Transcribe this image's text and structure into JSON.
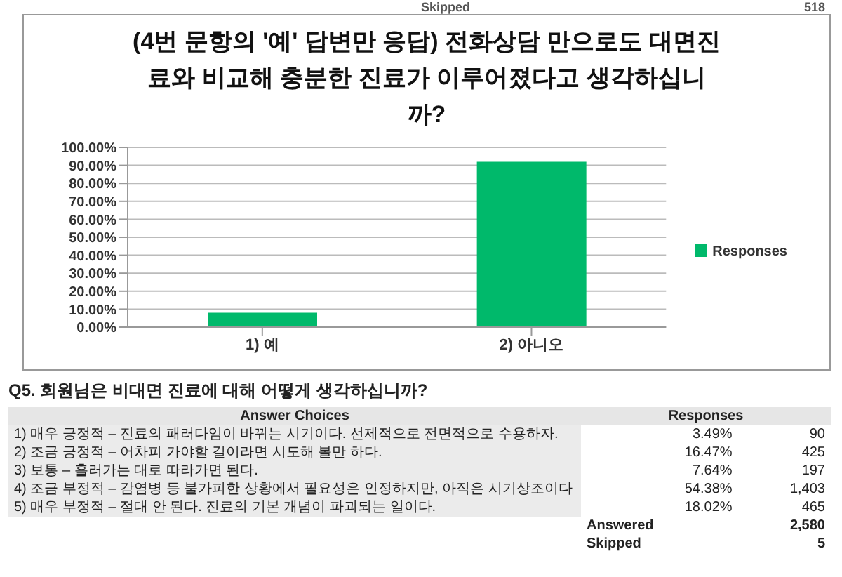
{
  "chart_data": [
    {
      "type": "bar",
      "title": "(4번 문항의 '예' 답변만 응답) 전화상담 만으로도 대면진료와 비교해 충분한 진료가 이루어졌다고 생각하십니까?",
      "categories": [
        "1) 예",
        "2) 아니오"
      ],
      "series": [
        {
          "name": "Responses",
          "color": "#00b96b",
          "values": [
            8,
            92
          ]
        }
      ],
      "ylim": [
        0,
        100
      ],
      "yticks": [
        {
          "value": 0,
          "label": "0.00%"
        },
        {
          "value": 10,
          "label": "10.00%"
        },
        {
          "value": 20,
          "label": "20.00%"
        },
        {
          "value": 30,
          "label": "30.00%"
        },
        {
          "value": 40,
          "label": "40.00%"
        },
        {
          "value": 50,
          "label": "50.00%"
        },
        {
          "value": 60,
          "label": "60.00%"
        },
        {
          "value": 70,
          "label": "70.00%"
        },
        {
          "value": 80,
          "label": "80.00%"
        },
        {
          "value": 90,
          "label": "90.00%"
        },
        {
          "value": 100,
          "label": "100.00%"
        }
      ],
      "grid": "y",
      "legend": "right",
      "annotations": [
        "Skipped",
        "518"
      ]
    },
    {
      "type": "other",
      "title": "Q5. 회원님은 비대면 진료에 대해 어떻게 생각하십니까?",
      "xlabel": "Answer Choices",
      "ylabel": "Responses",
      "categories": [
        "1) 매우 긍정적 – 진료의 패러다임이 바뀌는 시기이다. 선제적으로 전면적으로 수용하자.",
        "2) 조금 긍정적 – 어차피 가야할 길이라면 시도해 볼만 하다.",
        "3) 보통 – 흘러가는 대로 따라가면 된다.",
        "4) 조금 부정적 – 감염병 등 불가피한 상황에서 필요성은 인정하지만, 아직은 시기상조이다",
        "5) 매우 부정적 – 절대 안 된다. 진료의 기본 개념이 파괴되는 일이다."
      ],
      "series": [
        {
          "values": [
            3.49,
            16.47,
            7.64,
            54.38,
            18.02
          ],
          "value_labels": [
            "3.49%",
            "16.47%",
            "7.64%",
            "54.38%",
            "18.02%"
          ]
        },
        {
          "values": [
            90,
            425,
            197,
            1403,
            465
          ],
          "value_labels": [
            "90",
            "425",
            "197",
            "1,403",
            "465"
          ]
        }
      ],
      "annotations": [
        "Answered",
        "2,580",
        "Skipped",
        "5"
      ]
    }
  ]
}
